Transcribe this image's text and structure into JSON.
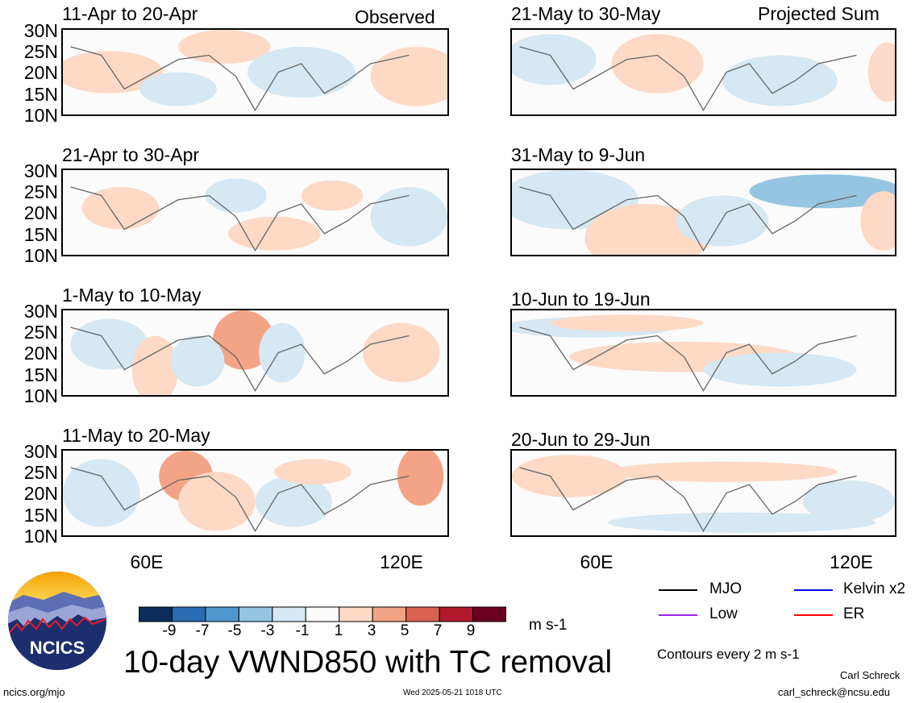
{
  "chart_data": {
    "type": "heatmap",
    "title": "10-day VWND850 with TC removal",
    "columns": [
      "Observed",
      "Projected Sum"
    ],
    "y_tick_labels": [
      "30N",
      "25N",
      "20N",
      "15N",
      "10N"
    ],
    "x_tick_labels": [
      "60E",
      "120E"
    ],
    "panels_left": [
      "11-Apr to 20-Apr",
      "21-Apr to 30-Apr",
      "1-May to 10-May",
      "11-May to 20-May"
    ],
    "panels_right": [
      "21-May to 30-May",
      "31-May to 9-Jun",
      "10-Jun to 19-Jun",
      "20-Jun to 29-Jun"
    ],
    "colorbar": {
      "labels": [
        "-9",
        "-7",
        "-5",
        "-3",
        "-1",
        "1",
        "3",
        "5",
        "7",
        "9"
      ],
      "colors": [
        "#0b2c5c",
        "#2a6cb4",
        "#4f98ce",
        "#96c5e1",
        "#d5e8f3",
        "#fbfbfb",
        "#fdd9c6",
        "#f3a486",
        "#d8624f",
        "#b0192c",
        "#6b0120"
      ],
      "units": "m s-1"
    },
    "legend": [
      {
        "label": "MJO",
        "color": "#000000"
      },
      {
        "label": "Kelvin x2",
        "color": "#0000ff"
      },
      {
        "label": "Low",
        "color": "#a020f0"
      },
      {
        "label": "ER",
        "color": "#ff0000"
      }
    ],
    "contour_note": "Contours every 2 m s-1"
  },
  "footer": {
    "logo_text": "NCICS",
    "url": "ncics.org/mjo",
    "timestamp": "Wed 2025-05-21 1018 UTC",
    "author": "Carl Schreck",
    "email": "carl_schreck@ncsu.edu"
  }
}
